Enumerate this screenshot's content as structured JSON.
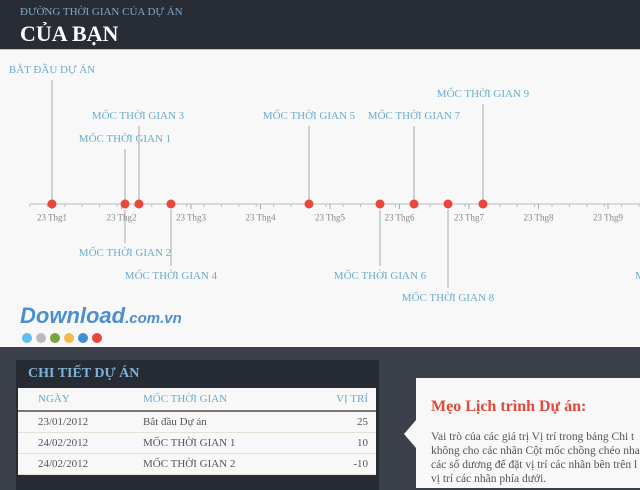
{
  "header": {
    "subtitle": "ĐƯỜNG THỜI GIAN CỦA DỰ ÁN",
    "title": "CỦA BẠN"
  },
  "timeline": {
    "ticks": [
      "23 Thg1",
      "23 Thg2",
      "23 Thg3",
      "23 Thg4",
      "23 Thg5",
      "23 Thg6",
      "23 Thg7",
      "23 Thg8",
      "23 Thg9"
    ],
    "milestones": [
      {
        "label": "BẮT ĐẦU DỰ ÁN",
        "date": "23/01/2012",
        "position": 25
      },
      {
        "label": "MỐC THỜI GIAN 1",
        "date": "24/02/2012",
        "position": 10
      },
      {
        "label": "MỐC THỜI GIAN 2",
        "date": "24/02/2012",
        "position": -10
      },
      {
        "label": "MỐC THỜI GIAN 3",
        "position": 15
      },
      {
        "label": "MỐC THỜI GIAN 4",
        "position": -15
      },
      {
        "label": "MỐC THỜI GIAN 5",
        "position": 15
      },
      {
        "label": "MỐC THỜI GIAN 6",
        "position": -15
      },
      {
        "label": "MỐC THỜI GIAN 7",
        "position": 15
      },
      {
        "label": "MỐC THỜI GIAN 8",
        "position": -20
      },
      {
        "label": "MỐC THỜI GIAN 9",
        "position": 20
      },
      {
        "label": "M",
        "position": -15
      }
    ],
    "colors": {
      "dot": "#e8473a",
      "label": "#6aaccf",
      "axis": "#bbbbbb"
    }
  },
  "details": {
    "title": "CHI TIẾT DỰ ÁN",
    "columns": [
      "NGÀY",
      "MỐC THỜI GIAN",
      "VỊ TRÍ"
    ],
    "rows": [
      [
        "23/01/2012",
        "Bắt đầu Dự án",
        "25"
      ],
      [
        "24/02/2012",
        "MỐC THỜI GIAN 1",
        "10"
      ],
      [
        "24/02/2012",
        "MỐC THỜI GIAN 2",
        "-10"
      ]
    ]
  },
  "tip": {
    "title": "Mẹo Lịch trình Dự án:",
    "lines": [
      "Vai trò của các giá trị Vị trí trong bảng Chi t",
      "không cho các nhãn Cột mốc chồng chéo nha",
      "các số dương để đặt vị trí các nhãn bên trên l",
      "vị trí các nhãn phía dưới."
    ]
  },
  "watermark": {
    "main": "Download",
    "suffix": ".com.vn"
  }
}
